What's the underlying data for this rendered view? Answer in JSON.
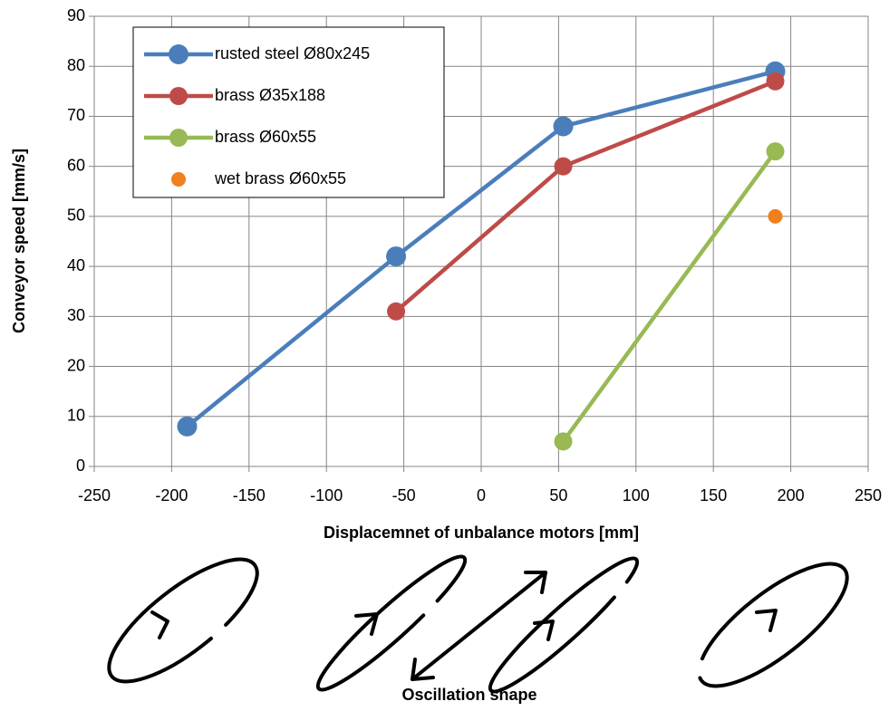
{
  "chart_data": {
    "type": "line",
    "x_label": "Displacemnet of unbalance motors [mm]",
    "y_label": "Conveyor speed [mm/s]",
    "xlim": [
      -250,
      250
    ],
    "xticks": [
      -250,
      -200,
      -150,
      -100,
      -50,
      0,
      50,
      100,
      150,
      200,
      250
    ],
    "ylim": [
      0,
      90
    ],
    "yticks": [
      0,
      10,
      20,
      30,
      40,
      50,
      60,
      70,
      80,
      90
    ],
    "grid": true,
    "legend": "upper left",
    "series": [
      {
        "name": "rusted steel Ø80x245",
        "color": "#4a7ebb",
        "line": true,
        "marker_size": 11,
        "x": [
          -190,
          -55,
          53,
          190
        ],
        "values": [
          8,
          42,
          68,
          79
        ]
      },
      {
        "name": "brass Ø35x188",
        "color": "#be4b48",
        "line": true,
        "marker_size": 10,
        "x": [
          -55,
          53,
          190
        ],
        "values": [
          31,
          60,
          77
        ]
      },
      {
        "name": "brass Ø60x55",
        "color": "#98b954",
        "line": true,
        "marker_size": 10,
        "x": [
          53,
          190
        ],
        "values": [
          5,
          63
        ]
      },
      {
        "name": "wet brass Ø60x55",
        "color": "#f07f1e",
        "line": false,
        "marker_size": 8,
        "x": [
          190
        ],
        "values": [
          50
        ]
      }
    ]
  },
  "oscillation_label": "Oscillation shape"
}
